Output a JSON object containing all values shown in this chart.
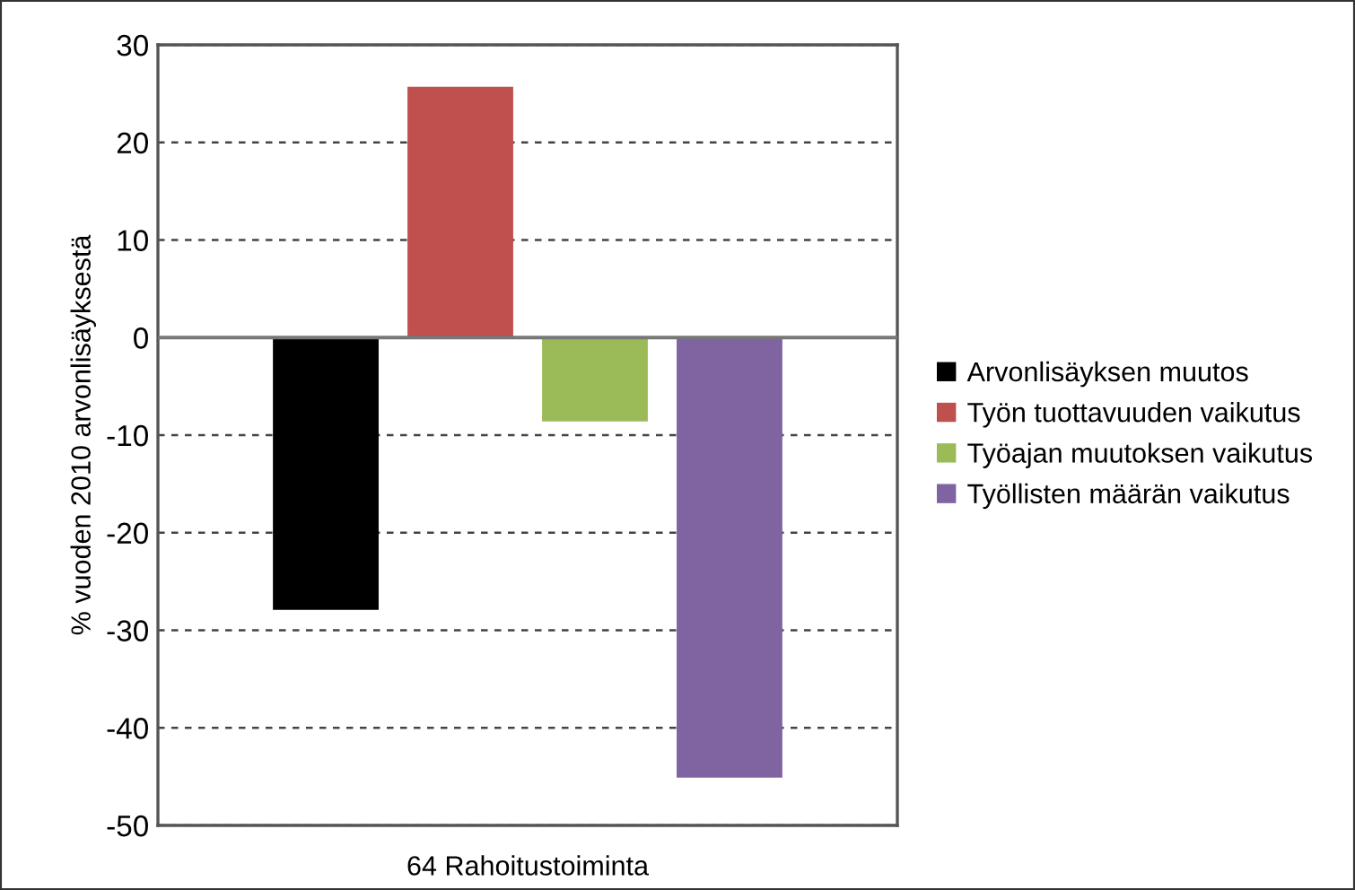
{
  "chart_data": {
    "type": "bar",
    "ylabel": "% vuoden 2010 arvonlisäyksestä",
    "categories": [
      "64 Rahoitustoiminta"
    ],
    "series": [
      {
        "name": "Arvonlisäyksen muutos",
        "color": "#000000",
        "values": [
          -27.9
        ]
      },
      {
        "name": "Työn tuottavuuden vaikutus",
        "color": "#c0504d",
        "values": [
          25.7
        ]
      },
      {
        "name": "Työajan muutoksen vaikutus",
        "color": "#9bbb59",
        "values": [
          -8.6
        ]
      },
      {
        "name": "Työllisten määrän vaikutus",
        "color": "#8064a2",
        "values": [
          -45.1
        ]
      }
    ],
    "ylim": [
      -50,
      30
    ],
    "yticks": [
      -50,
      -40,
      -30,
      -20,
      -10,
      0,
      10,
      20,
      30
    ],
    "grid": "y",
    "legend": "right"
  }
}
